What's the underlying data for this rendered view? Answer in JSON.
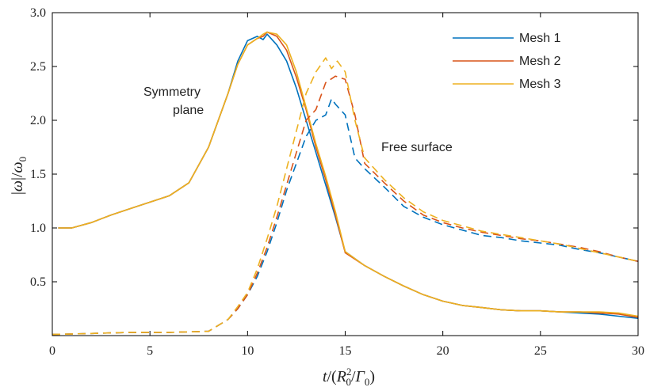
{
  "chart_data": {
    "type": "line",
    "xlabel": "t/(R_0^2/Γ_0)",
    "ylabel": "|ω|/ω_0",
    "xlim": [
      0,
      30
    ],
    "ylim": [
      0,
      3.0
    ],
    "x_ticks": [
      "0",
      "5",
      "10",
      "15",
      "20",
      "25",
      "30"
    ],
    "y_ticks": [
      "0.5",
      "1.0",
      "1.5",
      "2.0",
      "2.5",
      "3.0"
    ],
    "annotations": {
      "symmetry_line1": "Symmetry",
      "symmetry_line2": "plane",
      "free_surface": "Free surface"
    },
    "legend": {
      "position": "top-right",
      "entries": [
        {
          "name": "Mesh 1",
          "color": "#0072BD"
        },
        {
          "name": "Mesh 2",
          "color": "#D95319"
        },
        {
          "name": "Mesh 3",
          "color": "#EDB120"
        }
      ]
    },
    "groups": [
      {
        "name": "Symmetry plane",
        "style": "solid",
        "series": [
          {
            "name": "Mesh 1",
            "x": [
              0.3,
              1,
              2,
              3,
              4,
              5,
              6,
              7,
              8,
              9,
              9.5,
              10,
              10.5,
              10.8,
              11,
              11.5,
              12,
              12.5,
              13,
              13.5,
              14,
              14.5,
              15,
              16,
              17,
              18,
              19,
              20,
              21,
              22,
              23,
              24,
              25,
              26,
              27,
              28,
              29,
              30
            ],
            "y": [
              1.0,
              1.0,
              1.05,
              1.12,
              1.18,
              1.24,
              1.3,
              1.42,
              1.75,
              2.25,
              2.55,
              2.74,
              2.78,
              2.75,
              2.8,
              2.7,
              2.55,
              2.3,
              2.0,
              1.7,
              1.4,
              1.1,
              0.78,
              0.65,
              0.55,
              0.46,
              0.38,
              0.32,
              0.28,
              0.26,
              0.24,
              0.23,
              0.23,
              0.22,
              0.21,
              0.2,
              0.18,
              0.16
            ]
          },
          {
            "name": "Mesh 2",
            "x": [
              0.3,
              1,
              2,
              3,
              4,
              5,
              6,
              7,
              8,
              9,
              9.5,
              10,
              10.5,
              10.8,
              11,
              11.5,
              12,
              12.5,
              13,
              13.5,
              14,
              14.5,
              15,
              16,
              17,
              18,
              19,
              20,
              21,
              22,
              23,
              24,
              25,
              26,
              27,
              28,
              29,
              30
            ],
            "y": [
              1.0,
              1.0,
              1.05,
              1.12,
              1.18,
              1.24,
              1.3,
              1.42,
              1.75,
              2.25,
              2.52,
              2.7,
              2.76,
              2.78,
              2.82,
              2.78,
              2.65,
              2.4,
              2.1,
              1.75,
              1.45,
              1.12,
              0.77,
              0.65,
              0.55,
              0.46,
              0.38,
              0.32,
              0.28,
              0.26,
              0.24,
              0.23,
              0.23,
              0.22,
              0.22,
              0.21,
              0.2,
              0.17
            ]
          },
          {
            "name": "Mesh 3",
            "x": [
              0.3,
              1,
              2,
              3,
              4,
              5,
              6,
              7,
              8,
              9,
              9.5,
              10,
              10.5,
              10.8,
              11,
              11.5,
              12,
              12.5,
              13,
              13.5,
              14,
              14.5,
              15,
              16,
              17,
              18,
              19,
              20,
              21,
              22,
              23,
              24,
              25,
              26,
              27,
              28,
              29,
              30
            ],
            "y": [
              1.0,
              1.0,
              1.05,
              1.12,
              1.18,
              1.24,
              1.3,
              1.42,
              1.75,
              2.25,
              2.52,
              2.7,
              2.76,
              2.8,
              2.82,
              2.8,
              2.7,
              2.45,
              2.12,
              1.78,
              1.48,
              1.15,
              0.78,
              0.65,
              0.55,
              0.46,
              0.38,
              0.32,
              0.28,
              0.26,
              0.24,
              0.23,
              0.23,
              0.22,
              0.22,
              0.22,
              0.21,
              0.18
            ]
          }
        ]
      },
      {
        "name": "Free surface",
        "style": "dashed",
        "series": [
          {
            "name": "Mesh 1",
            "x": [
              0,
              2,
              4,
              6,
              8,
              9,
              9.5,
              10,
              10.5,
              11,
              11.5,
              12,
              12.5,
              13,
              13.5,
              14,
              14.3,
              14.5,
              15,
              15.5,
              16,
              17,
              18,
              19,
              20,
              21,
              22,
              23,
              24,
              25,
              26,
              27,
              28,
              29,
              30
            ],
            "y": [
              0.01,
              0.02,
              0.03,
              0.03,
              0.04,
              0.15,
              0.25,
              0.38,
              0.55,
              0.78,
              1.05,
              1.35,
              1.6,
              1.85,
              2.0,
              2.05,
              2.2,
              2.15,
              2.05,
              1.65,
              1.55,
              1.38,
              1.2,
              1.1,
              1.03,
              0.98,
              0.93,
              0.91,
              0.88,
              0.86,
              0.84,
              0.8,
              0.77,
              0.73,
              0.69
            ]
          },
          {
            "name": "Mesh 2",
            "x": [
              0,
              2,
              4,
              6,
              8,
              9,
              9.5,
              10,
              10.5,
              11,
              11.5,
              12,
              12.5,
              13,
              13.5,
              14,
              14.5,
              15,
              15.5,
              16,
              17,
              18,
              19,
              20,
              21,
              22,
              23,
              24,
              25,
              26,
              27,
              28,
              29,
              30
            ],
            "y": [
              0.01,
              0.02,
              0.03,
              0.03,
              0.04,
              0.15,
              0.25,
              0.38,
              0.58,
              0.82,
              1.1,
              1.4,
              1.7,
              2.0,
              2.1,
              2.35,
              2.41,
              2.38,
              2.05,
              1.6,
              1.42,
              1.25,
              1.12,
              1.05,
              1.0,
              0.96,
              0.93,
              0.9,
              0.88,
              0.85,
              0.82,
              0.78,
              0.73,
              0.69
            ]
          },
          {
            "name": "Mesh 3",
            "x": [
              0,
              2,
              4,
              6,
              8,
              9,
              9.5,
              10,
              10.5,
              11,
              11.5,
              12,
              12.5,
              13,
              13.5,
              14,
              14.3,
              14.6,
              15,
              15.5,
              16,
              17,
              18,
              19,
              20,
              21,
              22,
              23,
              24,
              25,
              26,
              27,
              28,
              29,
              30
            ],
            "y": [
              0.01,
              0.02,
              0.03,
              0.03,
              0.04,
              0.15,
              0.27,
              0.4,
              0.62,
              0.9,
              1.2,
              1.55,
              1.9,
              2.25,
              2.45,
              2.58,
              2.48,
              2.55,
              2.45,
              2.0,
              1.65,
              1.45,
              1.28,
              1.15,
              1.07,
              1.02,
              0.97,
              0.94,
              0.91,
              0.88,
              0.85,
              0.81,
              0.77,
              0.73,
              0.69
            ]
          }
        ]
      }
    ]
  }
}
